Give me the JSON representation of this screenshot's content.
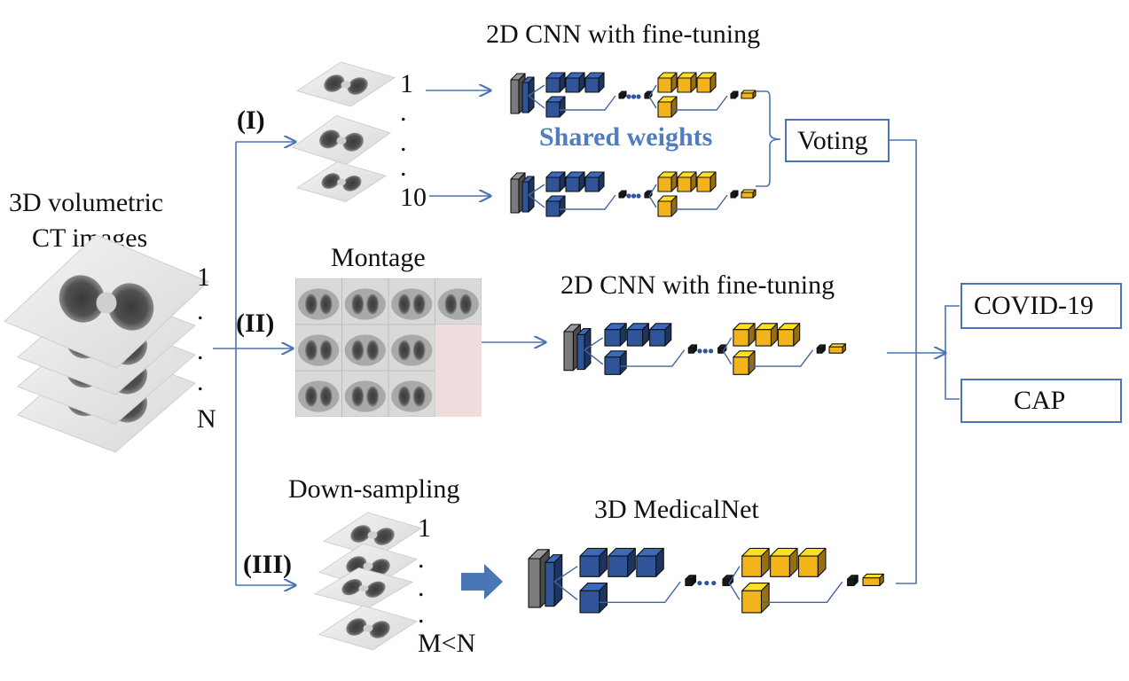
{
  "input": {
    "title_line1": "3D volumetric",
    "title_line2": "CT images",
    "idx_first": "1",
    "idx_dot": ".",
    "idx_last": "N"
  },
  "branches": {
    "b1": {
      "label": "(I)",
      "slice_first": "1",
      "slice_dot": ".",
      "slice_last": "10",
      "title": "2D CNN with fine-tuning",
      "shared": "Shared weights",
      "voting": "Voting"
    },
    "b2": {
      "label": "(II)",
      "montage_title": "Montage",
      "title": "2D CNN with fine-tuning"
    },
    "b3": {
      "label": "(III)",
      "sampling_title": "Down-sampling",
      "slice_first": "1",
      "slice_dot": ".",
      "slice_last": "M<N",
      "title": "3D MedicalNet"
    }
  },
  "outputs": {
    "o1": "COVID-19",
    "o2": "CAP"
  },
  "colors": {
    "accent": "#4a74b4",
    "blue_block": "#2f5497",
    "orange_block": "#f3b31a",
    "gray_block": "#7b7b7b",
    "text": "#111111",
    "shared": "#4f7dc0"
  }
}
